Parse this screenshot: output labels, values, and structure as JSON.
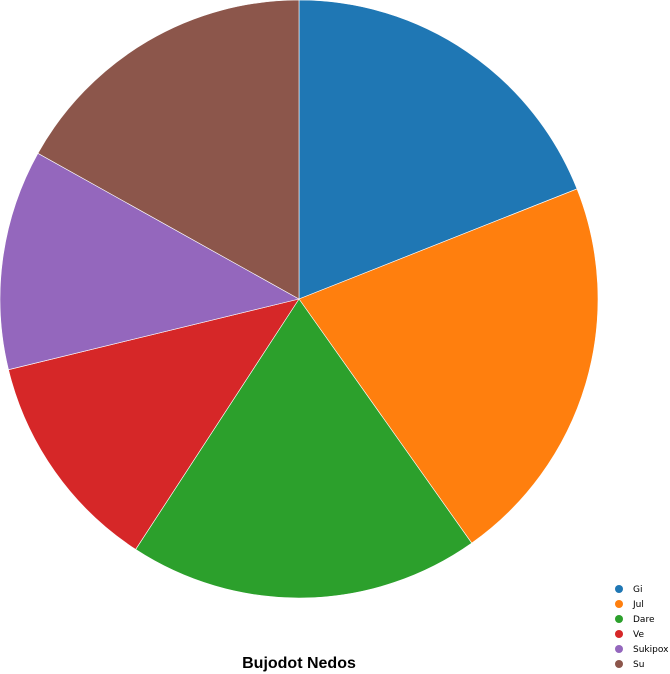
{
  "chart_data": {
    "type": "pie",
    "title": "Bujodot Nedos",
    "categories": [
      "Gi",
      "Jul",
      "Dare",
      "Ve",
      "Sukipox",
      "Su"
    ],
    "values": [
      19.0,
      21.2,
      19.0,
      12.0,
      11.9,
      16.9
    ],
    "colors": [
      "#1f77b4",
      "#ff7f0e",
      "#2ca02c",
      "#d62728",
      "#9467bd",
      "#8c564b"
    ],
    "start_angle": "top, clockwise",
    "legend": "bottom-right"
  }
}
